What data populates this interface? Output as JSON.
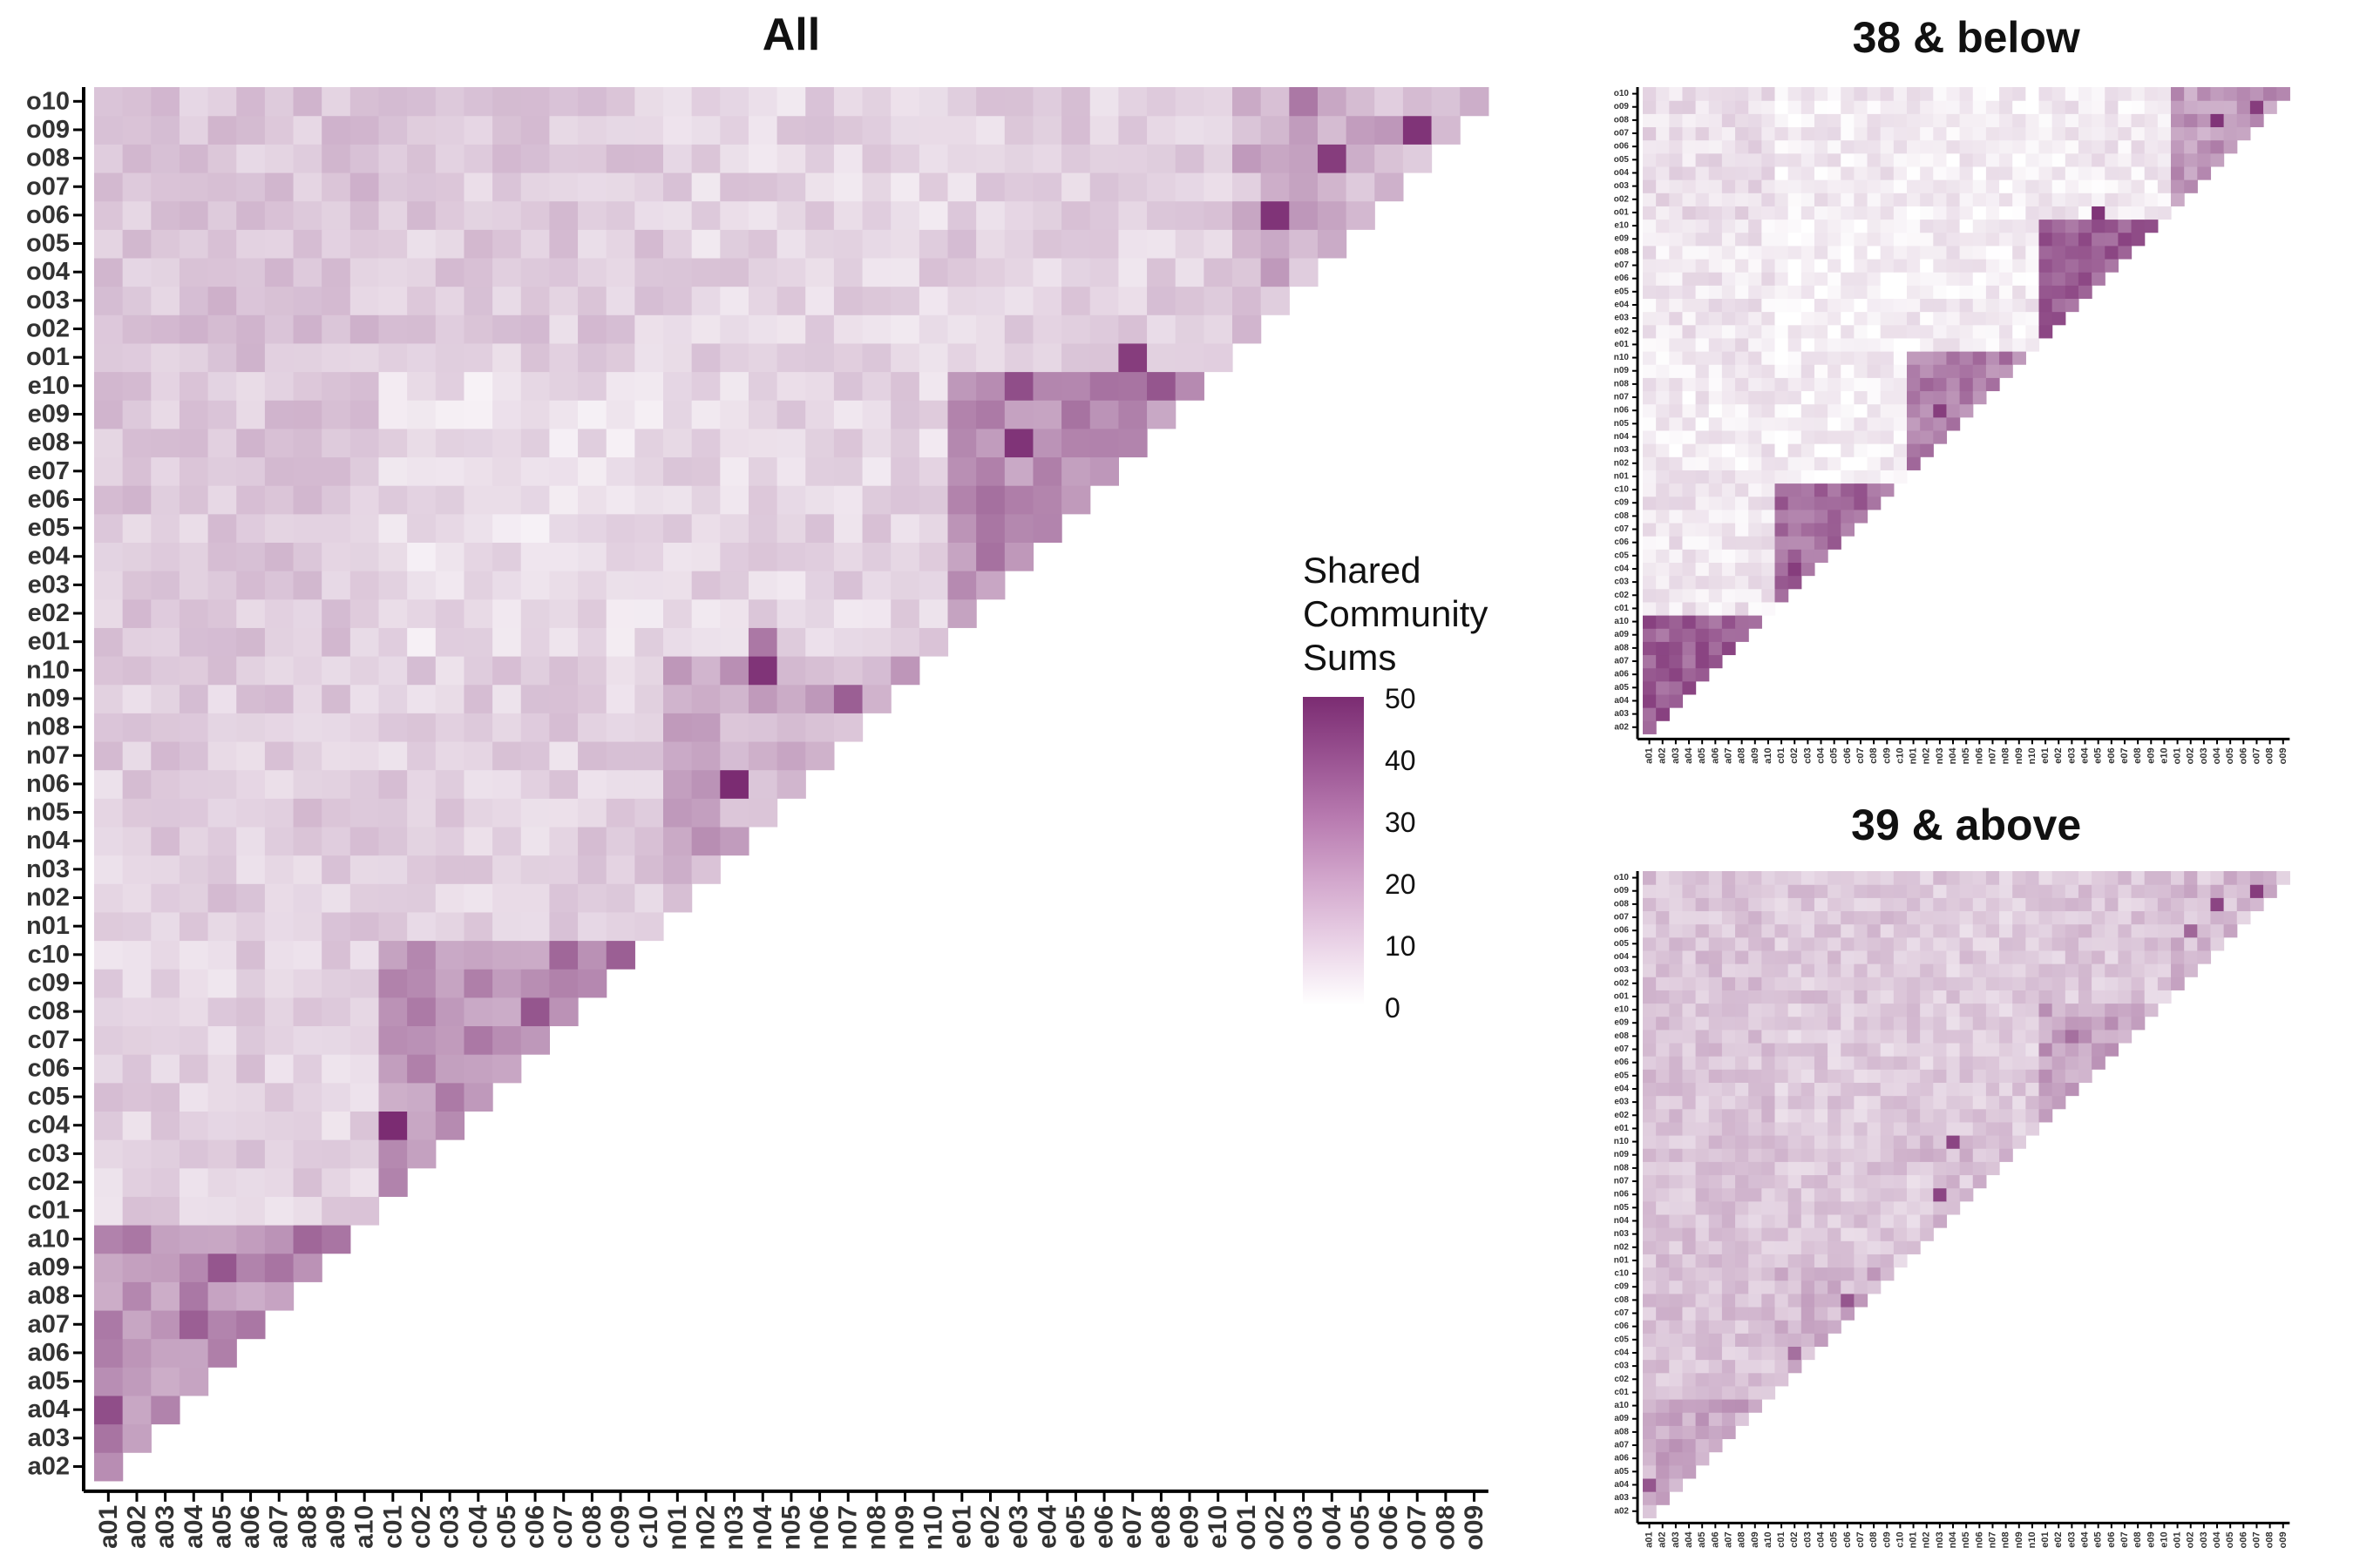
{
  "chart_data": [
    {
      "type": "heatmap",
      "title": "All",
      "x_categories": [
        "a01",
        "a02",
        "a03",
        "a04",
        "a05",
        "a06",
        "a07",
        "a08",
        "a09",
        "a10",
        "c01",
        "c02",
        "c03",
        "c04",
        "c05",
        "c06",
        "c07",
        "c08",
        "c09",
        "c10",
        "n01",
        "n02",
        "n03",
        "n04",
        "n05",
        "n06",
        "n07",
        "n08",
        "n09",
        "n10",
        "e01",
        "e02",
        "e03",
        "e04",
        "e05",
        "e06",
        "e07",
        "e08",
        "e09",
        "e10",
        "o01",
        "o02",
        "o03",
        "o04",
        "o05",
        "o06",
        "o07",
        "o08",
        "o09"
      ],
      "y_categories": [
        "a02",
        "a03",
        "a04",
        "a05",
        "a06",
        "a07",
        "a08",
        "a09",
        "a10",
        "c01",
        "c02",
        "c03",
        "c04",
        "c05",
        "c06",
        "c07",
        "c08",
        "c09",
        "c10",
        "n01",
        "n02",
        "n03",
        "n04",
        "n05",
        "n06",
        "n07",
        "n08",
        "n09",
        "n10",
        "e01",
        "e02",
        "e03",
        "e04",
        "e05",
        "e06",
        "e07",
        "e08",
        "e09",
        "e10",
        "o01",
        "o02",
        "o03",
        "o04",
        "o05",
        "o06",
        "o07",
        "o08",
        "o09",
        "o10"
      ],
      "shape": "lower-triangle",
      "block_values": {
        "a-a": 26,
        "c-c": 26,
        "n-n": 20,
        "e-e": 27,
        "o-o": 18,
        "c-a": 11,
        "n-a": 12,
        "e-a": 13,
        "o-a": 14,
        "n-c": 11,
        "e-c": 8,
        "o-c": 12,
        "e-n": 10,
        "o-n": 10,
        "o-e": 11
      },
      "highlight_cells": [
        {
          "x": "a01",
          "y": "a04",
          "value": 42
        },
        {
          "x": "a04",
          "y": "a07",
          "value": 38
        },
        {
          "x": "a05",
          "y": "a09",
          "value": 40
        },
        {
          "x": "a08",
          "y": "a10",
          "value": 36
        },
        {
          "x": "c01",
          "y": "c04",
          "value": 50
        },
        {
          "x": "c06",
          "y": "c08",
          "value": 40
        },
        {
          "x": "c07",
          "y": "c10",
          "value": 36
        },
        {
          "x": "c09",
          "y": "c10",
          "value": 38
        },
        {
          "x": "n03",
          "y": "n06",
          "value": 50
        },
        {
          "x": "n04",
          "y": "n10",
          "value": 48
        },
        {
          "x": "n07",
          "y": "n09",
          "value": 38
        },
        {
          "x": "n04",
          "y": "e01",
          "value": 32
        },
        {
          "x": "e03",
          "y": "e08",
          "value": 48
        },
        {
          "x": "e03",
          "y": "e10",
          "value": 42
        },
        {
          "x": "e07",
          "y": "o01",
          "value": 46
        },
        {
          "x": "e08",
          "y": "e10",
          "value": 40
        },
        {
          "x": "o02",
          "y": "o06",
          "value": 48
        },
        {
          "x": "o04",
          "y": "o08",
          "value": 46
        },
        {
          "x": "o07",
          "y": "o09",
          "value": 48
        },
        {
          "x": "o03",
          "y": "o10",
          "value": 32
        }
      ],
      "color_scale": {
        "min": 0,
        "max": 50,
        "low_color": "#ffffff",
        "high_color": "#7b2c72"
      }
    },
    {
      "type": "heatmap",
      "title": "38 & below",
      "x_categories": [
        "a01",
        "a02",
        "a03",
        "a04",
        "a05",
        "a06",
        "a07",
        "a08",
        "a09",
        "a10",
        "c01",
        "c02",
        "c03",
        "c04",
        "c05",
        "c06",
        "c07",
        "c08",
        "c09",
        "c10",
        "n01",
        "n02",
        "n03",
        "n04",
        "n05",
        "n06",
        "n07",
        "n08",
        "n09",
        "n10",
        "e01",
        "e02",
        "e03",
        "e04",
        "e05",
        "e06",
        "e07",
        "e08",
        "e09",
        "e10",
        "o01",
        "o02",
        "o03",
        "o04",
        "o05",
        "o06",
        "o07",
        "o08",
        "o09"
      ],
      "y_categories": [
        "a02",
        "a03",
        "a04",
        "a05",
        "a06",
        "a07",
        "a08",
        "a09",
        "a10",
        "c01",
        "c02",
        "c03",
        "c04",
        "c05",
        "c06",
        "c07",
        "c08",
        "c09",
        "c10",
        "n01",
        "n02",
        "n03",
        "n04",
        "n05",
        "n06",
        "n07",
        "n08",
        "n09",
        "n10",
        "e01",
        "e02",
        "e03",
        "e04",
        "e05",
        "e06",
        "e07",
        "e08",
        "e09",
        "e10",
        "o01",
        "o02",
        "o03",
        "o04",
        "o05",
        "o06",
        "o07",
        "o08",
        "o09",
        "o10"
      ],
      "shape": "lower-triangle",
      "block_values": {
        "a-a": 38,
        "c-c": 34,
        "n-n": 30,
        "e-e": 38,
        "o-o": 24,
        "c-a": 6,
        "n-a": 5,
        "e-a": 6,
        "o-a": 8,
        "n-c": 4,
        "e-c": 3,
        "o-c": 5,
        "e-n": 4,
        "o-n": 4,
        "o-e": 5
      },
      "highlight_cells": [
        {
          "x": "a01",
          "y": "a04",
          "value": 45
        },
        {
          "x": "c02",
          "y": "c04",
          "value": 46
        },
        {
          "x": "n03",
          "y": "n06",
          "value": 46
        },
        {
          "x": "e05",
          "y": "o01",
          "value": 48
        },
        {
          "x": "o04",
          "y": "o08",
          "value": 48
        },
        {
          "x": "o07",
          "y": "o09",
          "value": 46
        }
      ],
      "color_scale": {
        "min": 0,
        "max": 50,
        "low_color": "#ffffff",
        "high_color": "#7b2c72"
      }
    },
    {
      "type": "heatmap",
      "title": "39 & above",
      "x_categories": [
        "a01",
        "a02",
        "a03",
        "a04",
        "a05",
        "a06",
        "a07",
        "a08",
        "a09",
        "a10",
        "c01",
        "c02",
        "c03",
        "c04",
        "c05",
        "c06",
        "c07",
        "c08",
        "c09",
        "c10",
        "n01",
        "n02",
        "n03",
        "n04",
        "n05",
        "n06",
        "n07",
        "n08",
        "n09",
        "n10",
        "e01",
        "e02",
        "e03",
        "e04",
        "e05",
        "e06",
        "e07",
        "e08",
        "e09",
        "e10",
        "o01",
        "o02",
        "o03",
        "o04",
        "o05",
        "o06",
        "o07",
        "o08",
        "o09"
      ],
      "y_categories": [
        "a02",
        "a03",
        "a04",
        "a05",
        "a06",
        "a07",
        "a08",
        "a09",
        "a10",
        "c01",
        "c02",
        "c03",
        "c04",
        "c05",
        "c06",
        "c07",
        "c08",
        "c09",
        "c10",
        "n01",
        "n02",
        "n03",
        "n04",
        "n05",
        "n06",
        "n07",
        "n08",
        "n09",
        "n10",
        "e01",
        "e02",
        "e03",
        "e04",
        "e05",
        "e06",
        "e07",
        "e08",
        "e09",
        "e10",
        "o01",
        "o02",
        "o03",
        "o04",
        "o05",
        "o06",
        "o07",
        "o08",
        "o09",
        "o10"
      ],
      "shape": "lower-triangle",
      "block_values": {
        "a-a": 20,
        "c-c": 18,
        "n-n": 14,
        "e-e": 22,
        "o-o": 16,
        "c-a": 14,
        "n-a": 14,
        "e-a": 14,
        "o-a": 14,
        "n-c": 13,
        "e-c": 12,
        "o-c": 13,
        "e-n": 12,
        "o-n": 12,
        "o-e": 13
      },
      "highlight_cells": [
        {
          "x": "a01",
          "y": "a04",
          "value": 40
        },
        {
          "x": "c06",
          "y": "c08",
          "value": 40
        },
        {
          "x": "c02",
          "y": "c04",
          "value": 34
        },
        {
          "x": "n03",
          "y": "n06",
          "value": 44
        },
        {
          "x": "n04",
          "y": "n10",
          "value": 44
        },
        {
          "x": "e03",
          "y": "e08",
          "value": 34
        },
        {
          "x": "o04",
          "y": "o08",
          "value": 44
        },
        {
          "x": "o07",
          "y": "o09",
          "value": 46
        },
        {
          "x": "o02",
          "y": "o06",
          "value": 36
        }
      ],
      "color_scale": {
        "min": 0,
        "max": 50,
        "low_color": "#ffffff",
        "high_color": "#7b2c72"
      }
    }
  ],
  "legend": {
    "title_lines": [
      "Shared",
      "Community",
      "Sums"
    ],
    "ticks": [
      "50",
      "40",
      "30",
      "20",
      "10",
      "0"
    ]
  }
}
